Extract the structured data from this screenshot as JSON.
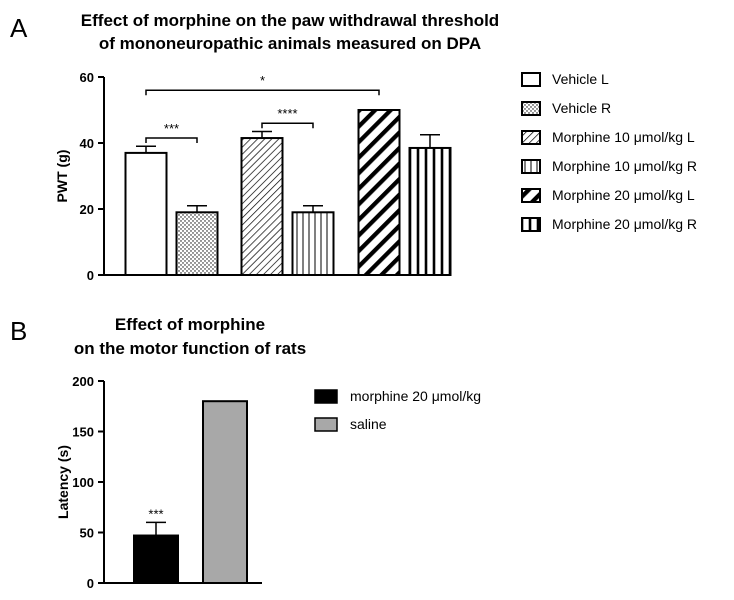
{
  "colors": {
    "axis": "#000000",
    "bar_fill": "#ffffff",
    "black": "#000000",
    "grey": "#a8a8a8"
  },
  "chart_data": [
    {
      "panel_label": "A",
      "type": "bar",
      "title_lines": [
        "Effect of morphine on the paw withdrawal threshold",
        "of mononeuropathic animals measured on DPA"
      ],
      "xlabel": "",
      "ylabel": "PWT (g)",
      "ylim": [
        0,
        60
      ],
      "yticks": [
        "0",
        "20",
        "40",
        "60"
      ],
      "series": [
        {
          "name": "Vehicle L",
          "value": 37,
          "error": 2,
          "pattern": "open"
        },
        {
          "name": "Vehicle R",
          "value": 19,
          "error": 2,
          "pattern": "dots"
        },
        {
          "name": "Morphine 10 μmol/kg L",
          "value": 41.5,
          "error": 2,
          "pattern": "diag-thin"
        },
        {
          "name": "Morphine 10 μmol/kg R",
          "value": 19,
          "error": 2,
          "pattern": "vert-thin"
        },
        {
          "name": "Morphine 20 μmol/kg L",
          "value": 50,
          "error": 0,
          "pattern": "diag-thick"
        },
        {
          "name": "Morphine 20 μmol/kg R",
          "value": 38.5,
          "error": 4,
          "pattern": "vert-thick"
        }
      ],
      "significance": [
        {
          "label": "***",
          "from": 0,
          "to": 1,
          "y": 41.5
        },
        {
          "label": "****",
          "from": 2,
          "to": 3,
          "y": 46
        },
        {
          "label": "*",
          "from": 0,
          "to": 4,
          "y": 56
        }
      ]
    },
    {
      "panel_label": "B",
      "type": "bar",
      "title_lines": [
        "Effect of morphine",
        "on the motor function of rats"
      ],
      "xlabel": "",
      "ylabel": "Latency (s)",
      "ylim": [
        0,
        200
      ],
      "yticks": [
        "0",
        "50",
        "100",
        "150",
        "200"
      ],
      "series": [
        {
          "name": "morphine 20 μmol/kg",
          "value": 47,
          "error": 13,
          "fill": "black",
          "annotation": "***"
        },
        {
          "name": "saline",
          "value": 180,
          "error": 0,
          "fill": "grey"
        }
      ]
    }
  ]
}
